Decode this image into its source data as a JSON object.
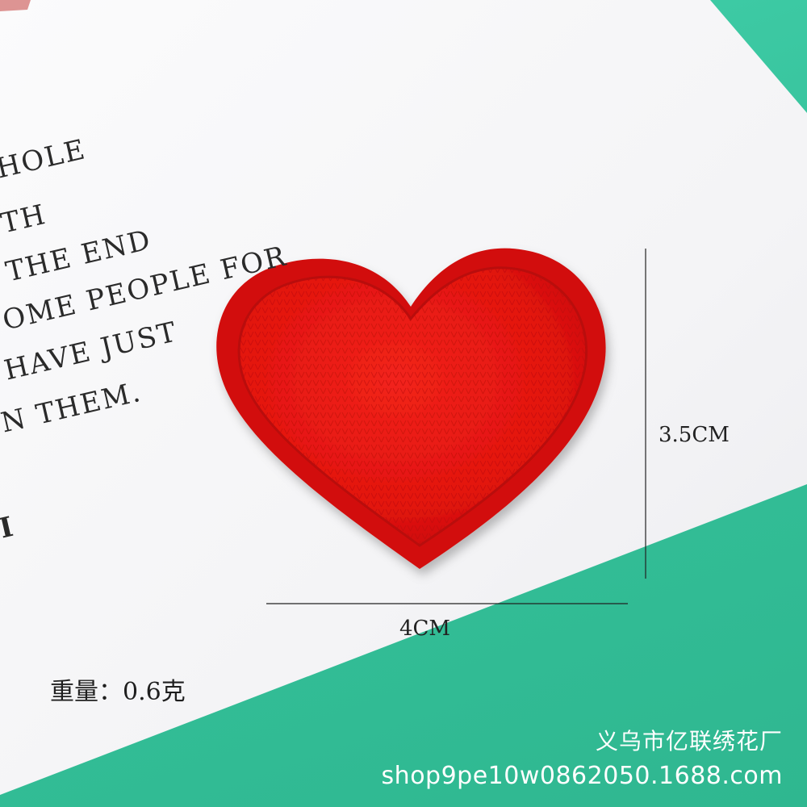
{
  "card": {
    "lines": [
      "HOLE",
      "TH",
      "THE END",
      "OME PEOPLE FOR",
      "HAVE JUST",
      "N THEM.",
      "I"
    ]
  },
  "patch": {
    "shape": "heart",
    "color": "#e8140f",
    "border_color": "#d90c0a"
  },
  "dimensions": {
    "height_label": "3.5CM",
    "width_label": "4CM"
  },
  "weight": {
    "label": "重量：0.6克"
  },
  "watermark": {
    "company": "义乌市亿联绣花厂",
    "shop": "shop9pe10w0862050.1688.com"
  },
  "colors": {
    "background": "#3cc6a0",
    "card": "#f7f7f8",
    "text": "#2a2a2a"
  }
}
